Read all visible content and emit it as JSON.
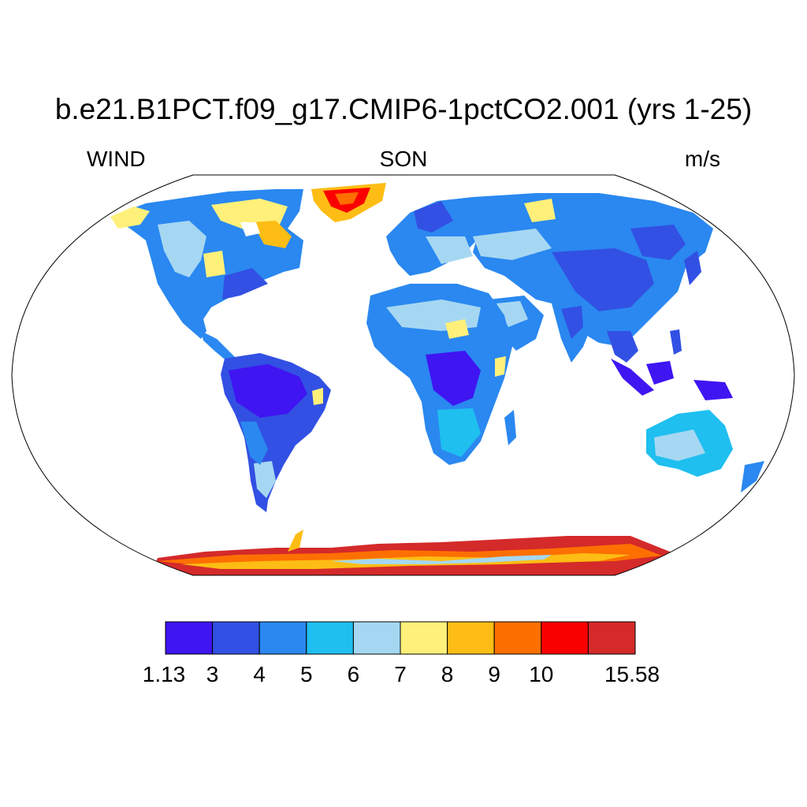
{
  "title": "b.e21.B1PCT.f09_g17.CMIP6-1pctCO2.001 (yrs 1-25)",
  "left_label": "WIND",
  "center_label": "SON",
  "right_label": "m/s",
  "colorbar": {
    "colors": [
      "#3f15f2",
      "#3250e3",
      "#2a88f0",
      "#1fbff0",
      "#a6d7f2",
      "#fff07a",
      "#fdbd14",
      "#fd7000",
      "#fb0000",
      "#d42a2a"
    ],
    "labels": [
      "1.13",
      "3",
      "4",
      "5",
      "6",
      "7",
      "8",
      "9",
      "10",
      "15.58"
    ]
  },
  "map": {
    "projection": "Robinson",
    "ocean_color": "#ffffff",
    "land_colors": {
      "very_low": "#3f15f2",
      "low": "#3250e3",
      "mid_low": "#2a88f0",
      "mid": "#1fbff0",
      "mid_high": "#a6d7f2",
      "moderate": "#fff07a",
      "elevated": "#fdbd14",
      "high": "#fd7000",
      "very_high": "#fb0000",
      "max": "#d42a2a"
    }
  }
}
